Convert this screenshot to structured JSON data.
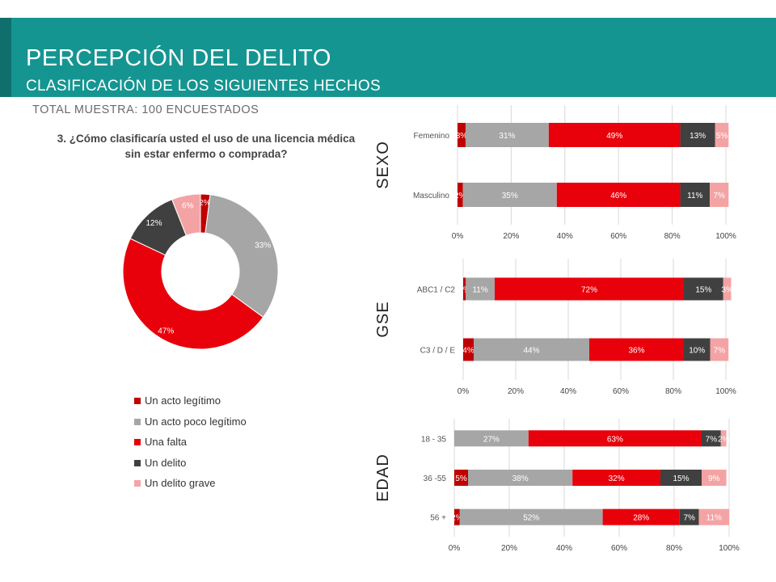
{
  "header": {
    "title": "PERCEPCIÓN DEL DELITO",
    "subtitle": "CLASIFICACIÓN DE LOS SIGUIENTES HECHOS"
  },
  "sample_label": "TOTAL MUESTRA: 100 ENCUESTADOS",
  "question": "3. ¿Cómo clasificaría usted el uso de una licencia médica sin estar enfermo o comprada?",
  "colors": {
    "header_bg": "#159591",
    "un_acto_legitimo": "#c00000",
    "un_acto_poco_legitimo": "#a6a6a6",
    "una_falta": "#e8000b",
    "un_delito": "#404040",
    "un_delito_grave": "#f4a3a5"
  },
  "legend": [
    {
      "label": "Un acto legítimo",
      "color": "#c00000"
    },
    {
      "label": "Un acto poco legítimo",
      "color": "#a6a6a6"
    },
    {
      "label": "Una falta",
      "color": "#e8000b"
    },
    {
      "label": "Un delito",
      "color": "#404040"
    },
    {
      "label": "Un delito grave",
      "color": "#f4a3a5"
    }
  ],
  "chart_data": [
    {
      "type": "pie",
      "variant": "donut",
      "categories": [
        "Un acto legítimo",
        "Un acto poco legítimo",
        "Una falta",
        "Un delito",
        "Un delito grave"
      ],
      "values": [
        2,
        33,
        47,
        12,
        6
      ],
      "labels": [
        "2%",
        "33%",
        "47%",
        "12%",
        "6%"
      ],
      "legend_position": "bottom"
    },
    {
      "type": "bar",
      "orientation": "horizontal",
      "stacked": true,
      "group_label": "SEXO",
      "categories": [
        "Femenino",
        "Masculino"
      ],
      "series": [
        {
          "name": "Un acto legítimo",
          "values": [
            3,
            2
          ],
          "labels": [
            "3%",
            "2%"
          ]
        },
        {
          "name": "Un acto poco legítimo",
          "values": [
            31,
            35
          ],
          "labels": [
            "31%",
            "35%"
          ]
        },
        {
          "name": "Una falta",
          "values": [
            49,
            46
          ],
          "labels": [
            "49%",
            "46%"
          ]
        },
        {
          "name": "Un delito",
          "values": [
            13,
            11
          ],
          "labels": [
            "13%",
            "11%"
          ]
        },
        {
          "name": "Un delito grave",
          "values": [
            5,
            7
          ],
          "labels": [
            "5%",
            "7%"
          ]
        }
      ],
      "xlim": [
        0,
        100
      ],
      "xticks": [
        "0%",
        "20%",
        "40%",
        "60%",
        "80%",
        "100%"
      ]
    },
    {
      "type": "bar",
      "orientation": "horizontal",
      "stacked": true,
      "group_label": "GSE",
      "categories": [
        "ABC1 / C2",
        "C3 / D / E"
      ],
      "series": [
        {
          "name": "Un acto legítimo",
          "values": [
            1,
            4
          ],
          "labels": [
            "1%",
            "4%"
          ]
        },
        {
          "name": "Un acto poco legítimo",
          "values": [
            11,
            44
          ],
          "labels": [
            "11%",
            "44%"
          ]
        },
        {
          "name": "Una falta",
          "values": [
            72,
            36
          ],
          "labels": [
            "72%",
            "36%"
          ]
        },
        {
          "name": "Un delito",
          "values": [
            15,
            10
          ],
          "labels": [
            "15%",
            "10%"
          ]
        },
        {
          "name": "Un delito grave",
          "values": [
            3,
            7
          ],
          "labels": [
            "3%",
            "7%"
          ]
        }
      ],
      "xlim": [
        0,
        100
      ],
      "xticks": [
        "0%",
        "20%",
        "40%",
        "60%",
        "80%",
        "100%"
      ]
    },
    {
      "type": "bar",
      "orientation": "horizontal",
      "stacked": true,
      "group_label": "EDAD",
      "categories": [
        "18 - 35",
        "36 -55",
        "56 +"
      ],
      "series": [
        {
          "name": "Un acto legítimo",
          "values": [
            0,
            5,
            2
          ],
          "labels": [
            "",
            "5%",
            "2%"
          ]
        },
        {
          "name": "Un acto poco legítimo",
          "values": [
            27,
            38,
            52
          ],
          "labels": [
            "27%",
            "38%",
            "52%"
          ]
        },
        {
          "name": "Una falta",
          "values": [
            63,
            32,
            28
          ],
          "labels": [
            "63%",
            "32%",
            "28%"
          ]
        },
        {
          "name": "Un delito",
          "values": [
            7,
            15,
            7
          ],
          "labels": [
            "7%",
            "15%",
            "7%"
          ]
        },
        {
          "name": "Un delito grave",
          "values": [
            2,
            9,
            11
          ],
          "labels": [
            "2%",
            "9%",
            "11%"
          ]
        }
      ],
      "xlim": [
        0,
        100
      ],
      "xticks": [
        "0%",
        "20%",
        "40%",
        "60%",
        "80%",
        "100%"
      ]
    }
  ]
}
